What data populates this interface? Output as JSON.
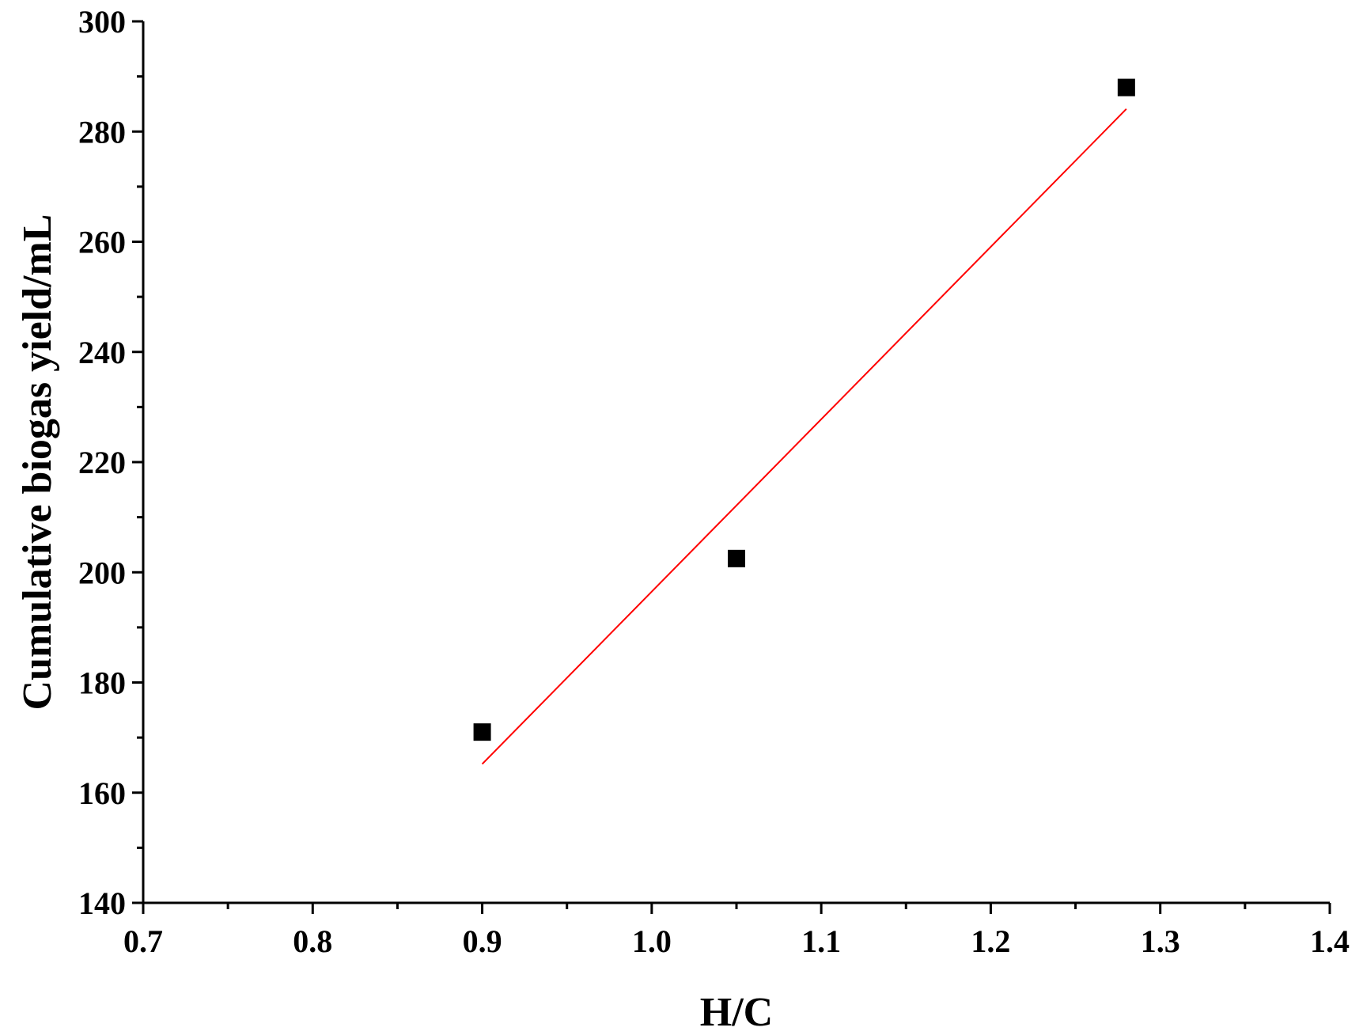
{
  "chart_data": {
    "type": "scatter",
    "title": "",
    "xlabel": "H/C",
    "ylabel": "Cumulative biogas yield/mL",
    "xlim": [
      0.7,
      1.4
    ],
    "ylim": [
      140,
      300
    ],
    "x_major_ticks": [
      0.7,
      0.8,
      0.9,
      1.0,
      1.1,
      1.2,
      1.3,
      1.4
    ],
    "x_tick_labels": [
      "0.7",
      "0.8",
      "0.9",
      "1.0",
      "1.1",
      "1.2",
      "1.3",
      "1.4"
    ],
    "x_minor_ticks": [
      0.75,
      0.85,
      0.95,
      1.05,
      1.15,
      1.25,
      1.35
    ],
    "y_major_ticks": [
      140,
      160,
      180,
      200,
      220,
      240,
      260,
      280,
      300
    ],
    "y_tick_labels": [
      "140",
      "160",
      "180",
      "200",
      "220",
      "240",
      "260",
      "280",
      "300"
    ],
    "y_minor_ticks": [
      150,
      170,
      190,
      210,
      230,
      250,
      270,
      290
    ],
    "grid": false,
    "series": [
      {
        "type": "scatter",
        "marker": "square",
        "color": "#000000",
        "x": [
          0.9,
          1.05,
          1.28
        ],
        "y": [
          171,
          202.5,
          288
        ]
      },
      {
        "type": "line",
        "color": "#ff0000",
        "x": [
          0.9,
          1.28
        ],
        "y": [
          165.2,
          284.1
        ]
      }
    ]
  }
}
